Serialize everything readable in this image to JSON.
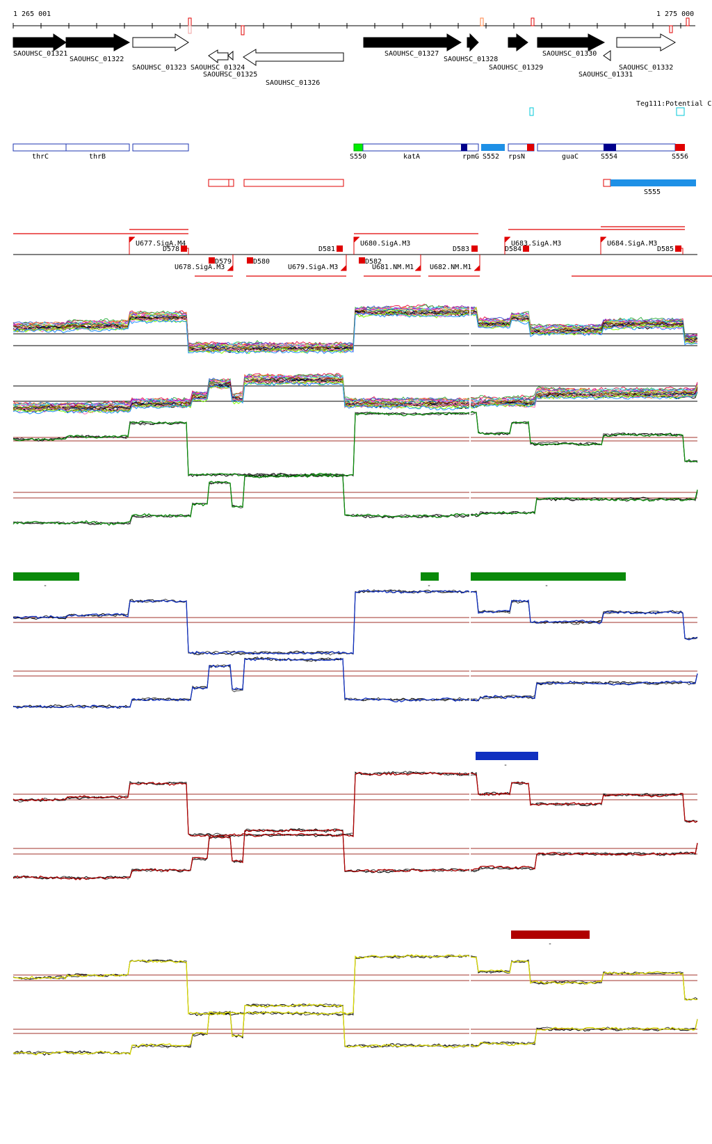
{
  "ruler": {
    "start_label": "1 265 001",
    "end_label": "1 275 000"
  },
  "genes": [
    {
      "id": "SAOUHSC_01321",
      "filled": true,
      "dir": "+"
    },
    {
      "id": "SAOUHSC_01322",
      "filled": true,
      "dir": "+"
    },
    {
      "id": "SAOUHSC_01323",
      "filled": false,
      "dir": "+"
    },
    {
      "id": "SAOUHSC_01324",
      "filled": false,
      "dir": "-"
    },
    {
      "id": "SAOUHSC_01325",
      "filled": false,
      "dir": "-"
    },
    {
      "id": "SAOUHSC_01326",
      "filled": false,
      "dir": "-"
    },
    {
      "id": "SAOUHSC_01327",
      "filled": true,
      "dir": "+"
    },
    {
      "id": "SAOUHSC_01328",
      "filled": true,
      "dir": "+"
    },
    {
      "id": "SAOUHSC_01329",
      "filled": true,
      "dir": "+"
    },
    {
      "id": "SAOUHSC_01330",
      "filled": true,
      "dir": "+"
    },
    {
      "id": "SAOUHSC_01331",
      "filled": false,
      "dir": "-"
    },
    {
      "id": "SAOUHSC_01332",
      "filled": false,
      "dir": "+"
    }
  ],
  "potential_label": "Teg111:Potential C",
  "operon_labels": [
    "thrC",
    "thrB",
    "S550",
    "katA",
    "rpmG",
    "S552",
    "rpsN",
    "guaC",
    "S554",
    "S556"
  ],
  "reverse_segment_label": "S555",
  "promoters": {
    "upper": [
      "U677.SigA.M4",
      "U680.SigA.M3",
      "U683.SigA.M3",
      "U684.SigA.M3"
    ],
    "lower": [
      "U678.SigA.M3",
      "U679.SigA.M3",
      "U681.NM.M1",
      "U682.NM.M1"
    ]
  },
  "terminators": [
    "D578",
    "D579",
    "D580",
    "D581",
    "D582",
    "D583",
    "D584",
    "D585"
  ],
  "colors": {
    "gene_fill": "#000000",
    "box_outline": "#1c35b0",
    "red": "#e00000",
    "sky": "#1e90e6",
    "green_box": "#00ee00",
    "navy": "#00008b",
    "cyan": "#00c8d8",
    "threshold": "#a0302a",
    "cond_green": "#0a8a0a",
    "cond_blue": "#1030c0",
    "cond_red": "#b00000",
    "cond_yellow": "#d8d800"
  },
  "condition_bar_labels": [
    "-",
    "-",
    "-",
    "-",
    "-"
  ]
}
